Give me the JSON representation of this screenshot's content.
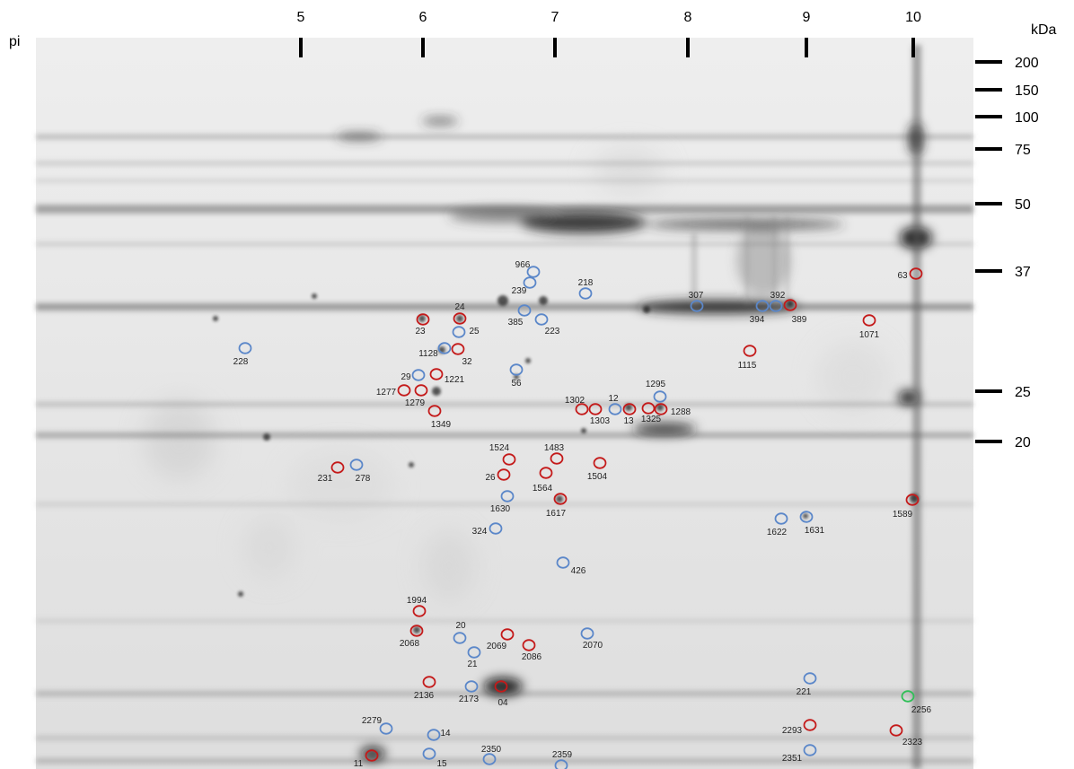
{
  "axis": {
    "ph_label": "pi",
    "mw_label": "kDa",
    "ph_ticks": [
      "5",
      "6",
      "7",
      "8",
      "9",
      "10"
    ],
    "mw_ticks": [
      "200",
      "150",
      "100",
      "75",
      "50",
      "37",
      "25",
      "20"
    ]
  },
  "colors": {
    "red": "#c41a1a",
    "blue": "#5b87c9",
    "green": "#2fbf57",
    "gel": "#e9e9e9"
  },
  "spots": [
    {
      "label": "966",
      "color": "blue"
    },
    {
      "label": "239",
      "color": "blue"
    },
    {
      "label": "218",
      "color": "blue"
    },
    {
      "label": "385",
      "color": "blue"
    },
    {
      "label": "223",
      "color": "blue"
    },
    {
      "label": "24",
      "color": "red"
    },
    {
      "label": "23",
      "color": "red"
    },
    {
      "label": "25",
      "color": "blue"
    },
    {
      "label": "1128",
      "color": "blue"
    },
    {
      "label": "32",
      "color": "red"
    },
    {
      "label": "228",
      "color": "blue"
    },
    {
      "label": "29",
      "color": "blue"
    },
    {
      "label": "1221",
      "color": "red"
    },
    {
      "label": "1277",
      "color": "red"
    },
    {
      "label": "1279",
      "color": "red"
    },
    {
      "label": "1349",
      "color": "red"
    },
    {
      "label": "56",
      "color": "blue"
    },
    {
      "label": "307",
      "color": "blue"
    },
    {
      "label": "392",
      "color": "blue"
    },
    {
      "label": "394",
      "color": "blue"
    },
    {
      "label": "389",
      "color": "red"
    },
    {
      "label": "63",
      "color": "red"
    },
    {
      "label": "1071",
      "color": "red"
    },
    {
      "label": "1115",
      "color": "red"
    },
    {
      "label": "1295",
      "color": "blue"
    },
    {
      "label": "1302",
      "color": "red"
    },
    {
      "label": "1303",
      "color": "red"
    },
    {
      "label": "12",
      "color": "blue"
    },
    {
      "label": "13",
      "color": "red"
    },
    {
      "label": "1325",
      "color": "red"
    },
    {
      "label": "1288",
      "color": "red"
    },
    {
      "label": "1524",
      "color": "red"
    },
    {
      "label": "1483",
      "color": "red"
    },
    {
      "label": "26",
      "color": "red"
    },
    {
      "label": "1564",
      "color": "red"
    },
    {
      "label": "1504",
      "color": "red"
    },
    {
      "label": "231",
      "color": "red"
    },
    {
      "label": "278",
      "color": "blue"
    },
    {
      "label": "1630",
      "color": "blue"
    },
    {
      "label": "1617",
      "color": "red"
    },
    {
      "label": "324",
      "color": "blue"
    },
    {
      "label": "426",
      "color": "blue"
    },
    {
      "label": "1622",
      "color": "blue"
    },
    {
      "label": "1631",
      "color": "blue"
    },
    {
      "label": "1589",
      "color": "red"
    },
    {
      "label": "1994",
      "color": "red"
    },
    {
      "label": "2068",
      "color": "red"
    },
    {
      "label": "20",
      "color": "blue"
    },
    {
      "label": "21",
      "color": "blue"
    },
    {
      "label": "2069",
      "color": "red"
    },
    {
      "label": "2086",
      "color": "red"
    },
    {
      "label": "2070",
      "color": "blue"
    },
    {
      "label": "2136",
      "color": "red"
    },
    {
      "label": "2173",
      "color": "blue"
    },
    {
      "label": "04",
      "color": "red"
    },
    {
      "label": "221",
      "color": "blue"
    },
    {
      "label": "2256",
      "color": "green"
    },
    {
      "label": "2279",
      "color": "blue"
    },
    {
      "label": "14",
      "color": "blue"
    },
    {
      "label": "2350",
      "color": "blue"
    },
    {
      "label": "2359",
      "color": "blue"
    },
    {
      "label": "11",
      "color": "red"
    },
    {
      "label": "15",
      "color": "blue"
    },
    {
      "label": "2293",
      "color": "red"
    },
    {
      "label": "2323",
      "color": "red"
    },
    {
      "label": "2351",
      "color": "blue"
    }
  ]
}
